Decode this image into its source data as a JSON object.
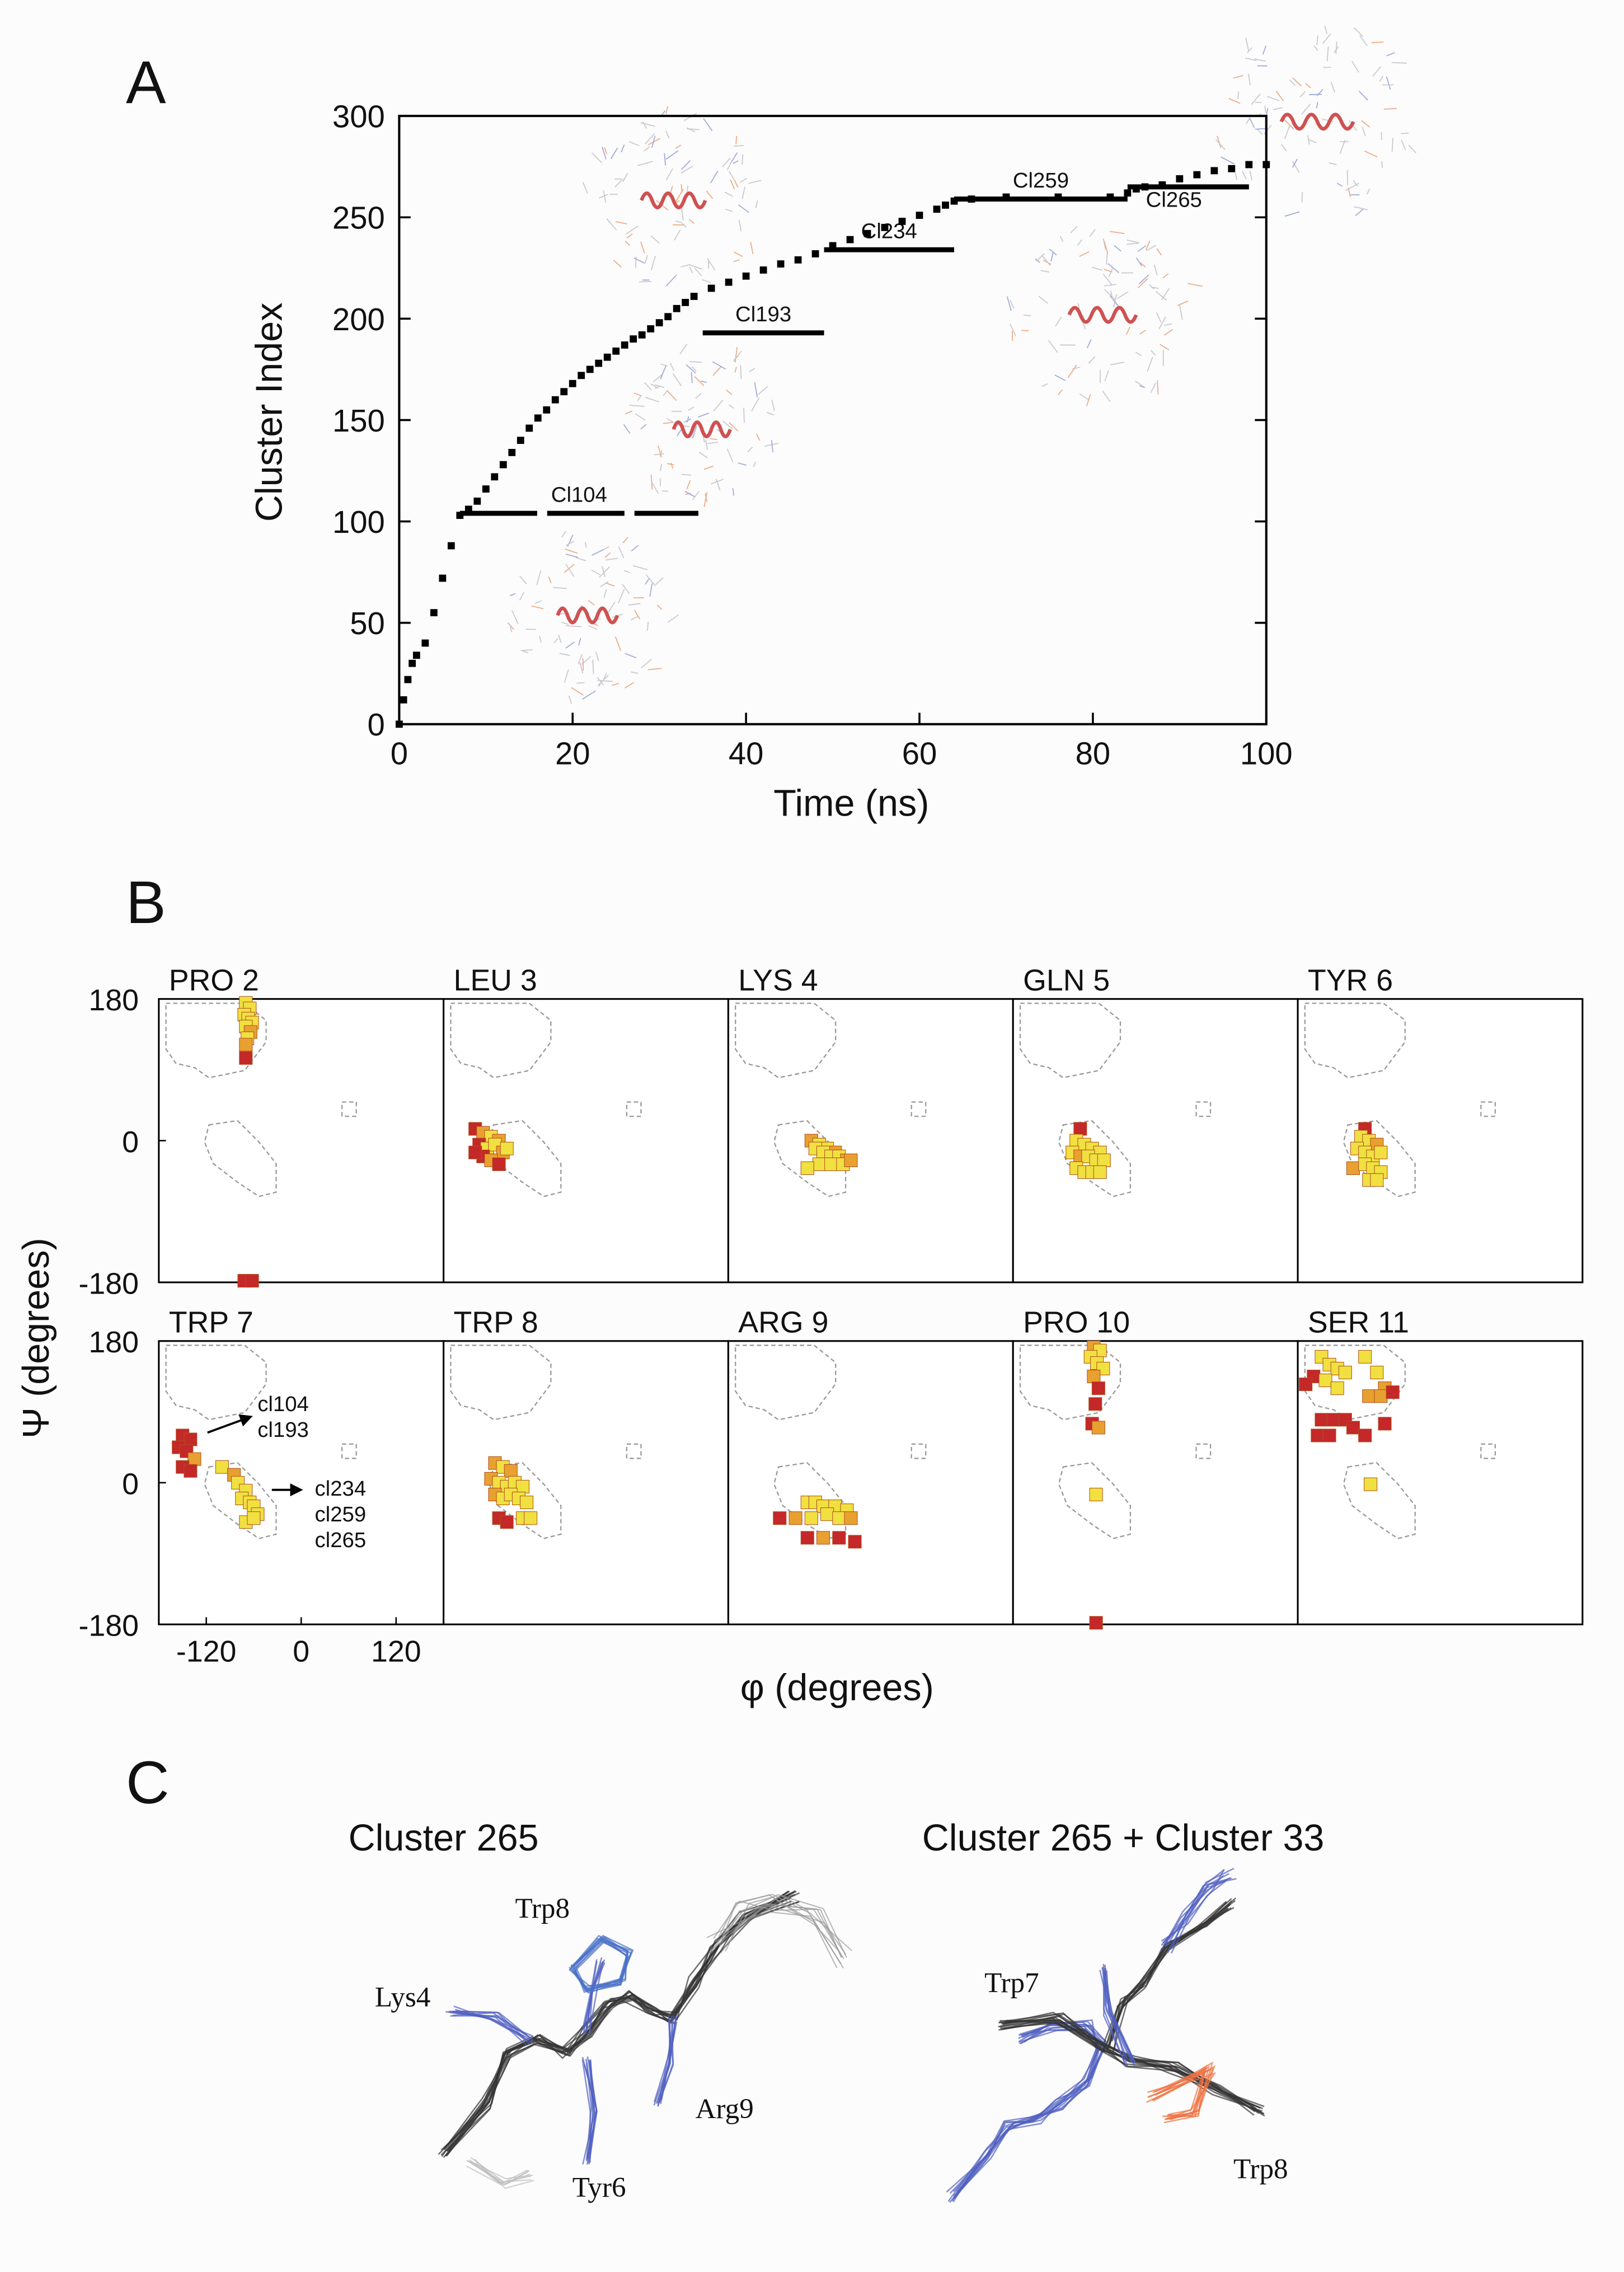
{
  "panel_labels": [
    "A",
    "B",
    "C"
  ],
  "chart_data": [
    {
      "type": "timeline",
      "xlabel": "Time (ns)",
      "ylabel": "Cluster Index",
      "color": "#000000",
      "x": [
        0,
        0.5,
        1,
        1.5,
        2,
        3,
        4,
        5,
        6,
        7,
        8,
        9,
        10,
        11,
        12,
        13,
        14,
        15,
        16,
        17,
        18,
        19,
        20,
        21,
        22,
        23,
        24,
        25,
        26,
        27,
        28,
        29,
        30,
        31,
        32,
        33,
        34,
        36,
        38,
        40,
        42,
        44,
        46,
        48,
        50,
        52,
        54,
        56,
        58,
        60,
        62,
        63,
        64,
        66,
        70,
        76,
        82,
        84,
        85,
        86,
        88,
        90,
        92,
        94,
        96,
        98,
        100
      ],
      "y": [
        0,
        12,
        22,
        30,
        34,
        40,
        55,
        72,
        88,
        103,
        106,
        110,
        116,
        122,
        128,
        134,
        140,
        146,
        151,
        155,
        160,
        164,
        168,
        172,
        175,
        178,
        181,
        184,
        187,
        190,
        192,
        195,
        198,
        201,
        205,
        208,
        211,
        215,
        218,
        221,
        224,
        227,
        229,
        232,
        236,
        239,
        242,
        245,
        248,
        251,
        254,
        256,
        258,
        259,
        260,
        260,
        260,
        262,
        264,
        265,
        266,
        269,
        271,
        273,
        274,
        276,
        276
      ],
      "xlim": [
        0,
        100
      ],
      "ylim": [
        0,
        300
      ],
      "xticks": [
        0,
        20,
        40,
        60,
        80,
        100
      ],
      "yticks": [
        0,
        50,
        100,
        150,
        200,
        250,
        300
      ],
      "segments": [
        {
          "label": "Cl104",
          "start": 7,
          "end": 34.5,
          "value": 104,
          "style": "dashed"
        },
        {
          "label": "Cl193",
          "start": 35,
          "end": 49,
          "value": 193,
          "style": "solid"
        },
        {
          "label": "Cl234",
          "start": 49,
          "end": 64,
          "value": 234,
          "style": "solid"
        },
        {
          "label": "Cl259",
          "start": 64,
          "end": 84,
          "value": 259,
          "style": "solid"
        },
        {
          "label": "Cl265",
          "start": 84,
          "end": 98,
          "value": 265,
          "style": "solid"
        }
      ]
    },
    {
      "type": "rama",
      "title": "PRO 2",
      "xlim": [
        -180,
        180
      ],
      "ylim": [
        -180,
        180
      ],
      "yticks": [
        180,
        0,
        -180
      ],
      "x": [
        -70,
        -65,
        -72,
        -67,
        -62,
        -70,
        -64,
        -68,
        -70,
        -70,
        -72,
        -62
      ],
      "y": [
        175,
        168,
        160,
        155,
        150,
        145,
        138,
        130,
        122,
        105,
        -178,
        -178
      ],
      "colors": [
        "#f0e040",
        "#f0e040",
        "#f0e040",
        "#f0e040",
        "#f0e040",
        "#f0e040",
        "#e8a030",
        "#f0e040",
        "#e8a030",
        "#c42828",
        "#c42828",
        "#c42828"
      ]
    },
    {
      "type": "rama",
      "title": "LEU 3",
      "xlim": [
        -180,
        180
      ],
      "ylim": [
        -180,
        180
      ],
      "x": [
        -140,
        -130,
        -120,
        -110,
        -135,
        -125,
        -115,
        -105,
        -130,
        -120,
        -110,
        -140,
        -100
      ],
      "y": [
        15,
        10,
        5,
        0,
        -5,
        -10,
        -5,
        -15,
        -20,
        -25,
        -30,
        -15,
        -10
      ],
      "colors": [
        "#c42828",
        "#e8a030",
        "#f0e040",
        "#e8a030",
        "#c42828",
        "#f0e040",
        "#f0e040",
        "#e8a030",
        "#c42828",
        "#e8a030",
        "#c42828",
        "#c42828",
        "#f0e040"
      ]
    },
    {
      "type": "rama",
      "title": "LYS 4",
      "xlim": [
        -180,
        180
      ],
      "ylim": [
        -180,
        180
      ],
      "x": [
        -75,
        -65,
        -55,
        -45,
        -70,
        -60,
        -50,
        -40,
        -30,
        -65,
        -50,
        -35,
        -25,
        -80
      ],
      "y": [
        0,
        -5,
        -10,
        -15,
        -10,
        -15,
        -20,
        -20,
        -25,
        -30,
        -30,
        -30,
        -25,
        -35
      ],
      "colors": [
        "#e8a030",
        "#f0e040",
        "#f0e040",
        "#e8a030",
        "#f0e040",
        "#f0e040",
        "#f0e040",
        "#f0e040",
        "#e8a030",
        "#f0e040",
        "#f0e040",
        "#f0e040",
        "#e8a030",
        "#f0e040"
      ]
    },
    {
      "type": "rama",
      "title": "GLN 5",
      "xlim": [
        -180,
        180
      ],
      "ylim": [
        -180,
        180
      ],
      "x": [
        -95,
        -100,
        -90,
        -80,
        -70,
        -105,
        -95,
        -85,
        -75,
        -65,
        -100,
        -90,
        -80,
        -70
      ],
      "y": [
        15,
        0,
        -5,
        -10,
        -15,
        -15,
        -20,
        -20,
        -25,
        -25,
        -35,
        -40,
        -40,
        -40
      ],
      "colors": [
        "#c42828",
        "#f0e040",
        "#f0e040",
        "#f0e040",
        "#f0e040",
        "#f0e040",
        "#e8a030",
        "#f0e040",
        "#f0e040",
        "#f0e040",
        "#f0e040",
        "#f0e040",
        "#f0e040",
        "#f0e040"
      ]
    },
    {
      "type": "rama",
      "title": "TYR 6",
      "xlim": [
        -180,
        180
      ],
      "ylim": [
        -180,
        180
      ],
      "x": [
        -95,
        -100,
        -90,
        -80,
        -105,
        -95,
        -85,
        -75,
        -110,
        -95,
        -85,
        -75,
        -90,
        -80
      ],
      "y": [
        15,
        5,
        0,
        -5,
        -10,
        -15,
        -20,
        -15,
        -35,
        -30,
        -35,
        -40,
        -50,
        -50
      ],
      "colors": [
        "#c42828",
        "#f0e040",
        "#f0e040",
        "#e8a030",
        "#f0e040",
        "#f0e040",
        "#f0e040",
        "#f0e040",
        "#e8a030",
        "#f0e040",
        "#f0e040",
        "#f0e040",
        "#f0e040",
        "#f0e040"
      ]
    },
    {
      "type": "rama",
      "title": "TRP 7",
      "xlim": [
        -180,
        180
      ],
      "ylim": [
        -180,
        180
      ],
      "xticks": [
        -120,
        0,
        120
      ],
      "yticks": [
        180,
        0,
        -180
      ],
      "x": [
        -150,
        -140,
        -155,
        -145,
        -135,
        -150,
        -140,
        -100,
        -85,
        -80,
        -70,
        -75,
        -65,
        -60,
        -55,
        -70,
        -60
      ],
      "y": [
        60,
        55,
        45,
        40,
        30,
        20,
        15,
        20,
        10,
        0,
        -10,
        -20,
        -25,
        -30,
        -40,
        -50,
        -45
      ],
      "colors": [
        "#c42828",
        "#c42828",
        "#c42828",
        "#c42828",
        "#e8a030",
        "#c42828",
        "#c42828",
        "#f0e040",
        "#e8a030",
        "#f0e040",
        "#f0e040",
        "#f0e040",
        "#f0e040",
        "#f0e040",
        "#f0e040",
        "#f0e040",
        "#f0e040"
      ],
      "annotations": [
        [
          "cl104",
          "cl193"
        ],
        [
          "cl234",
          "cl259",
          "cl265"
        ]
      ]
    },
    {
      "type": "rama",
      "title": "TRP 8",
      "xlim": [
        -180,
        180
      ],
      "ylim": [
        -180,
        180
      ],
      "x": [
        -115,
        -105,
        -95,
        -120,
        -110,
        -100,
        -90,
        -80,
        -115,
        -105,
        -95,
        -85,
        -75,
        -110,
        -100,
        -80,
        -70
      ],
      "y": [
        25,
        20,
        15,
        5,
        0,
        -5,
        0,
        -5,
        -15,
        -20,
        -15,
        -20,
        -25,
        -45,
        -50,
        -45,
        -45
      ],
      "colors": [
        "#e8a030",
        "#f0e040",
        "#e8a030",
        "#e8a030",
        "#f0e040",
        "#f0e040",
        "#f0e040",
        "#f0e040",
        "#e8a030",
        "#f0e040",
        "#f0e040",
        "#f0e040",
        "#f0e040",
        "#c42828",
        "#c42828",
        "#f0e040",
        "#f0e040"
      ]
    },
    {
      "type": "rama",
      "title": "ARG 9",
      "xlim": [
        -180,
        180
      ],
      "ylim": [
        -180,
        180
      ],
      "x": [
        -115,
        -80,
        -70,
        -60,
        -45,
        -30,
        -95,
        -75,
        -55,
        -40,
        -25,
        -80,
        -60,
        -40,
        -20
      ],
      "y": [
        -45,
        -25,
        -25,
        -30,
        -30,
        -35,
        -45,
        -45,
        -40,
        -45,
        -45,
        -70,
        -70,
        -70,
        -75
      ],
      "colors": [
        "#c42828",
        "#f0e040",
        "#f0e040",
        "#f0e040",
        "#f0e040",
        "#f0e040",
        "#e8a030",
        "#f0e040",
        "#f0e040",
        "#f0e040",
        "#e8a030",
        "#c42828",
        "#e8a030",
        "#c42828",
        "#c42828"
      ]
    },
    {
      "type": "rama",
      "title": "PRO 10",
      "xlim": [
        -180,
        180
      ],
      "ylim": [
        -180,
        180
      ],
      "x": [
        -78,
        -70,
        -82,
        -74,
        -66,
        -78,
        -72,
        -76,
        -80,
        -72,
        -75,
        -75
      ],
      "y": [
        172,
        168,
        160,
        152,
        145,
        135,
        120,
        100,
        75,
        70,
        -15,
        -178
      ],
      "colors": [
        "#e8a030",
        "#f0e040",
        "#f0e040",
        "#f0e040",
        "#f0e040",
        "#e8a030",
        "#c42828",
        "#c42828",
        "#c42828",
        "#e8a030",
        "#f0e040",
        "#c42828"
      ]
    },
    {
      "type": "rama",
      "title": "SER 11",
      "xlim": [
        -180,
        180
      ],
      "ylim": [
        -180,
        180
      ],
      "x": [
        -150,
        -140,
        -130,
        -120,
        -160,
        -145,
        -130,
        -170,
        -95,
        -80,
        -70,
        -90,
        -75,
        -60,
        -150,
        -135,
        -120,
        -155,
        -140,
        -110,
        -95,
        -70,
        -88
      ],
      "y": [
        160,
        150,
        145,
        140,
        135,
        130,
        120,
        125,
        160,
        140,
        120,
        110,
        110,
        115,
        80,
        80,
        80,
        60,
        60,
        70,
        60,
        75,
        -2
      ],
      "colors": [
        "#f0e040",
        "#f0e040",
        "#f0e040",
        "#f0e040",
        "#c42828",
        "#f0e040",
        "#f0e040",
        "#c42828",
        "#f0e040",
        "#f0e040",
        "#e8a030",
        "#e8a030",
        "#e8a030",
        "#c42828",
        "#c42828",
        "#c42828",
        "#c42828",
        "#c42828",
        "#c42828",
        "#c42828",
        "#c42828",
        "#c42828",
        "#f0e040"
      ]
    }
  ],
  "panel_b": {
    "xlabel": "φ (degrees)",
    "ylabel": "Ψ (degrees)"
  },
  "panel_c": {
    "titles": [
      "Cluster 265",
      "Cluster 265 + Cluster 33"
    ],
    "residues_left": [
      "Trp8",
      "Lys4",
      "Arg9",
      "Tyr6"
    ],
    "residues_right": [
      "Trp7",
      "Trp8"
    ]
  }
}
